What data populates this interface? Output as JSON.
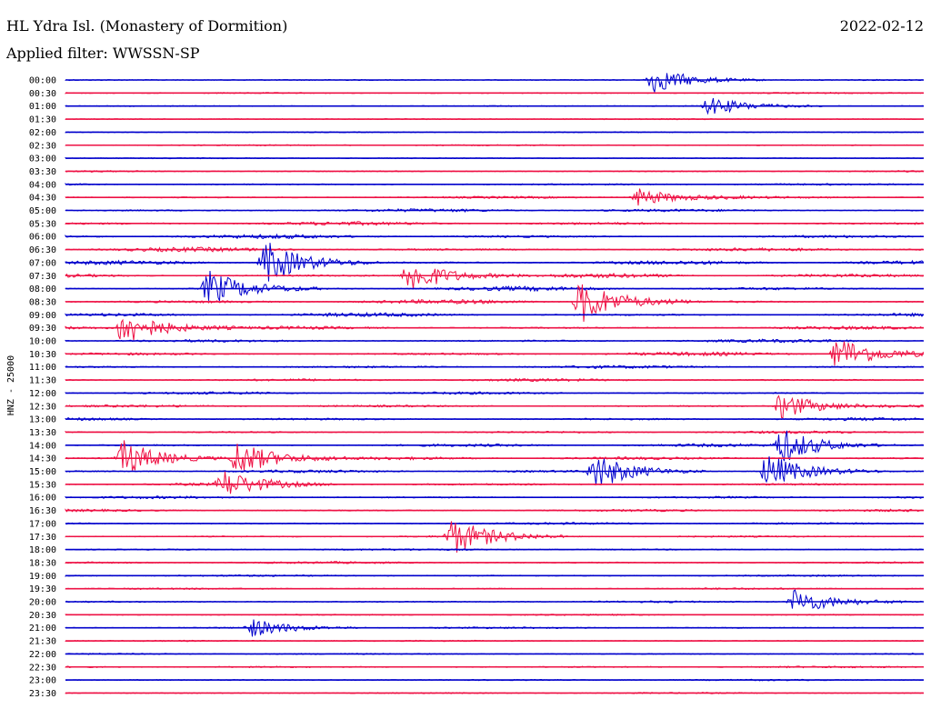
{
  "header": {
    "station": "HL Ydra Isl. (Monastery of Dormition)",
    "date": "2022-02-12",
    "filter_label": "Applied filter: WWSSN-SP"
  },
  "chart_data": {
    "type": "line",
    "ylabel": "HNZ - 25000",
    "row_labels": [
      "00:00",
      "00:30",
      "01:00",
      "01:30",
      "02:00",
      "02:30",
      "03:00",
      "03:30",
      "04:00",
      "04:30",
      "05:00",
      "05:30",
      "06:00",
      "06:30",
      "07:00",
      "07:30",
      "08:00",
      "08:30",
      "09:00",
      "09:30",
      "10:00",
      "10:30",
      "11:00",
      "11:30",
      "12:00",
      "12:30",
      "13:00",
      "13:30",
      "14:00",
      "14:30",
      "15:00",
      "15:30",
      "16:00",
      "16:30",
      "17:00",
      "17:30",
      "18:00",
      "18:30",
      "19:00",
      "19:30",
      "20:00",
      "20:30",
      "21:00",
      "21:30",
      "22:00",
      "22:30",
      "23:00",
      "23:30"
    ],
    "colors": [
      "#0000cc",
      "#ee1144"
    ],
    "activity": [
      0.1,
      0.2,
      0.1,
      0.1,
      0.1,
      0.15,
      0.1,
      0.2,
      0.3,
      0.5,
      0.7,
      0.8,
      0.9,
      1.0,
      1.0,
      1.0,
      1.0,
      0.9,
      0.9,
      0.8,
      0.7,
      0.8,
      0.6,
      0.6,
      0.6,
      0.5,
      0.6,
      0.5,
      0.7,
      0.7,
      0.6,
      0.6,
      0.5,
      0.5,
      0.4,
      0.4,
      0.3,
      0.4,
      0.3,
      0.3,
      0.3,
      0.2,
      0.3,
      0.2,
      0.2,
      0.3,
      0.2,
      0.2
    ],
    "events": [
      {
        "row": 0,
        "minute": 20.5,
        "amp": 3
      },
      {
        "row": 2,
        "minute": 22.5,
        "amp": 2
      },
      {
        "row": 9,
        "minute": 20,
        "amp": 2
      },
      {
        "row": 14,
        "minute": 7,
        "amp": 5
      },
      {
        "row": 15,
        "minute": 12,
        "amp": 4
      },
      {
        "row": 16,
        "minute": 5,
        "amp": 4
      },
      {
        "row": 17,
        "minute": 18,
        "amp": 5
      },
      {
        "row": 19,
        "minute": 2,
        "amp": 4
      },
      {
        "row": 21,
        "minute": 27,
        "amp": 4
      },
      {
        "row": 25,
        "minute": 25,
        "amp": 3
      },
      {
        "row": 28,
        "minute": 25,
        "amp": 4
      },
      {
        "row": 29,
        "minute": 2,
        "amp": 4
      },
      {
        "row": 29,
        "minute": 6,
        "amp": 4
      },
      {
        "row": 30,
        "minute": 18.5,
        "amp": 4
      },
      {
        "row": 30,
        "minute": 24.5,
        "amp": 4
      },
      {
        "row": 31,
        "minute": 5.5,
        "amp": 3
      },
      {
        "row": 35,
        "minute": 13.5,
        "amp": 4
      },
      {
        "row": 40,
        "minute": 25.5,
        "amp": 3
      },
      {
        "row": 42,
        "minute": 6.5,
        "amp": 2
      }
    ]
  }
}
